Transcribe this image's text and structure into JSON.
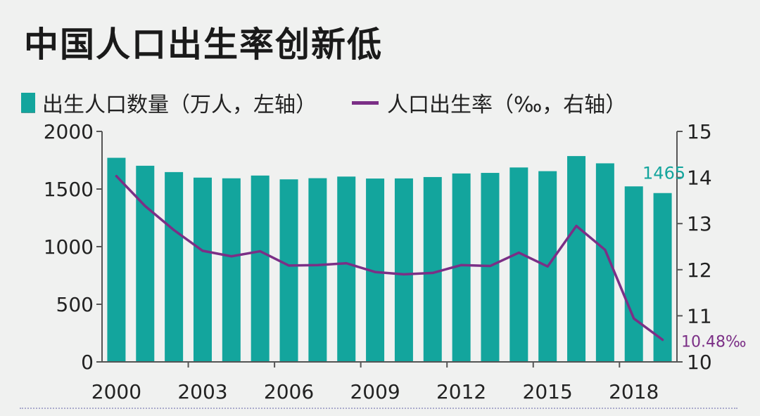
{
  "title": "中国人口出生率创新低",
  "colors": {
    "bars": "#13a59d",
    "line": "#7b2f86",
    "axis": "#555555",
    "background": "#f0f1f0"
  },
  "chart_data": {
    "type": "bar",
    "title": "中国人口出生率创新低",
    "categories": [
      "2000",
      "2001",
      "2002",
      "2003",
      "2004",
      "2005",
      "2006",
      "2007",
      "2008",
      "2009",
      "2010",
      "2011",
      "2012",
      "2013",
      "2014",
      "2015",
      "2016",
      "2017",
      "2018",
      "2019"
    ],
    "x_tick_labels": [
      "2000",
      "2003",
      "2006",
      "2009",
      "2012",
      "2015",
      "2018"
    ],
    "series": [
      {
        "name": "出生人口数量（万人，左轴）",
        "type": "bar",
        "axis": "left",
        "values": [
          1771,
          1702,
          1647,
          1599,
          1593,
          1617,
          1584,
          1594,
          1608,
          1591,
          1592,
          1604,
          1635,
          1640,
          1687,
          1655,
          1786,
          1723,
          1523,
          1465
        ]
      },
      {
        "name": "人口出生率（‰，右轴）",
        "type": "line",
        "axis": "right",
        "values": [
          14.03,
          13.38,
          12.86,
          12.41,
          12.29,
          12.4,
          12.09,
          12.1,
          12.14,
          11.95,
          11.9,
          11.93,
          12.1,
          12.08,
          12.37,
          12.07,
          12.95,
          12.43,
          10.94,
          10.48
        ]
      }
    ],
    "y_left": {
      "ylim": [
        0,
        2000
      ],
      "ticks": [
        0,
        500,
        1000,
        1500,
        2000
      ]
    },
    "y_right": {
      "ylim": [
        10,
        15
      ],
      "ticks": [
        10,
        11,
        12,
        13,
        14,
        15
      ]
    },
    "annotations": {
      "last_bar": "1465",
      "last_rate": "10.48‰"
    }
  }
}
